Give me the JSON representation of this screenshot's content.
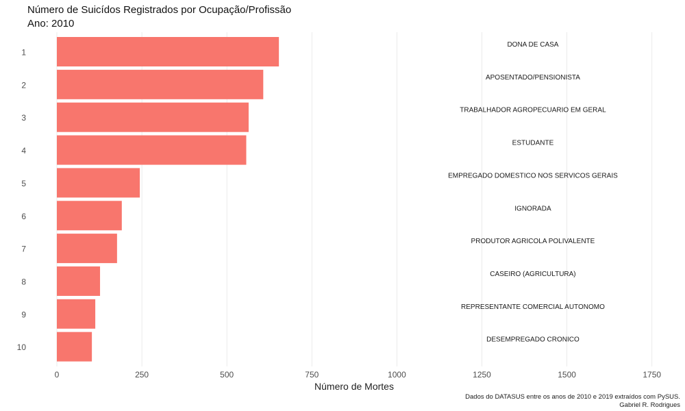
{
  "chart_data": {
    "type": "bar",
    "orientation": "horizontal",
    "title": "Número de Suicídos Registrados por Ocupação/Profissão",
    "subtitle": "Ano: 2010",
    "xlabel": "Número de Mortes",
    "ylabel": "",
    "categories": [
      "1",
      "2",
      "3",
      "4",
      "5",
      "6",
      "7",
      "8",
      "9",
      "10"
    ],
    "values": [
      653,
      607,
      564,
      557,
      244,
      191,
      177,
      127,
      113,
      103
    ],
    "bar_labels": [
      "DONA DE CASA",
      "APOSENTADO/PENSIONISTA",
      "TRABALHADOR AGROPECUARIO EM GERAL",
      "ESTUDANTE",
      "EMPREGADO DOMESTICO NOS SERVICOS GERAIS",
      "IGNORADA",
      "PRODUTOR AGRICOLA POLIVALENTE",
      "CASEIRO (AGRICULTURA)",
      "REPRESENTANTE COMERCIAL AUTONOMO",
      "DESEMPREGADO CRONICO"
    ],
    "xticks": [
      "0",
      "250",
      "500",
      "750",
      "1000",
      "1250",
      "1500",
      "1750"
    ],
    "xlim": [
      0,
      1750
    ],
    "grid": true,
    "legend": "none",
    "caption": [
      "Dados do DATASUS entre os anos de 2010 e 2019 extraídos com PySUS.",
      "Gabriel R. Rodrigues"
    ]
  },
  "colors": {
    "bar": "#F8766D",
    "grid": "#E6E6E6"
  }
}
